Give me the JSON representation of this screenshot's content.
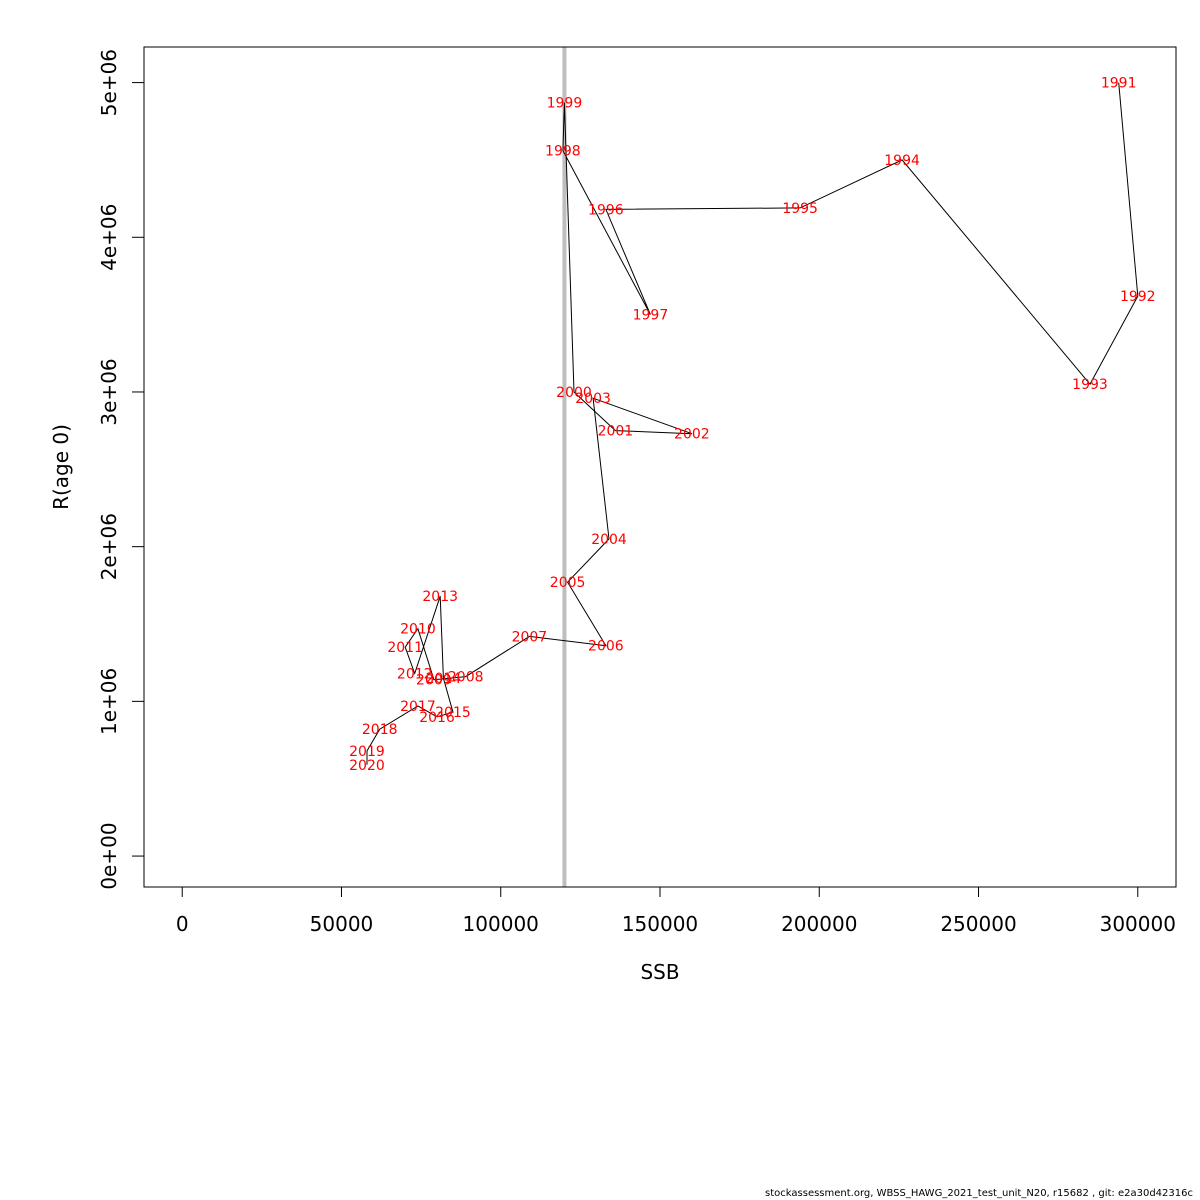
{
  "chart_data": {
    "type": "scatter",
    "connected": true,
    "xlabel": "SSB",
    "ylabel": "R(age 0)",
    "xlim": [
      -12000,
      312000
    ],
    "ylim": [
      -200000,
      5230000
    ],
    "xticks": [
      0,
      50000,
      100000,
      150000,
      200000,
      250000,
      300000
    ],
    "xtick_labels": [
      "0",
      "50000",
      "100000",
      "150000",
      "200000",
      "250000",
      "300000"
    ],
    "yticks": [
      0,
      1000000,
      2000000,
      3000000,
      4000000,
      5000000
    ],
    "ytick_labels": [
      "0e+00",
      "1e+06",
      "2e+06",
      "3e+06",
      "4e+06",
      "5e+06"
    ],
    "reference_line": {
      "axis": "x",
      "value": 120000
    },
    "grid": false,
    "points": [
      {
        "label": "1991",
        "x": 294000,
        "y": 5000000
      },
      {
        "label": "1992",
        "x": 300000,
        "y": 3620000
      },
      {
        "label": "1993",
        "x": 285000,
        "y": 3050000
      },
      {
        "label": "1994",
        "x": 226000,
        "y": 4500000
      },
      {
        "label": "1995",
        "x": 194000,
        "y": 4190000
      },
      {
        "label": "1996",
        "x": 133000,
        "y": 4180000
      },
      {
        "label": "1997",
        "x": 147000,
        "y": 3500000
      },
      {
        "label": "1998",
        "x": 119500,
        "y": 4560000
      },
      {
        "label": "1999",
        "x": 120000,
        "y": 4870000
      },
      {
        "label": "2000",
        "x": 123000,
        "y": 3000000
      },
      {
        "label": "2001",
        "x": 136000,
        "y": 2750000
      },
      {
        "label": "2002",
        "x": 160000,
        "y": 2730000
      },
      {
        "label": "2003",
        "x": 129000,
        "y": 2960000
      },
      {
        "label": "2004",
        "x": 134000,
        "y": 2050000
      },
      {
        "label": "2005",
        "x": 121000,
        "y": 1770000
      },
      {
        "label": "2006",
        "x": 133000,
        "y": 1360000
      },
      {
        "label": "2007",
        "x": 109000,
        "y": 1420000
      },
      {
        "label": "2008",
        "x": 89000,
        "y": 1160000
      },
      {
        "label": "2009",
        "x": 79000,
        "y": 1140000
      },
      {
        "label": "2010",
        "x": 74000,
        "y": 1470000
      },
      {
        "label": "2011",
        "x": 70000,
        "y": 1350000
      },
      {
        "label": "2012",
        "x": 73000,
        "y": 1180000
      },
      {
        "label": "2013",
        "x": 81000,
        "y": 1680000
      },
      {
        "label": "2014",
        "x": 82000,
        "y": 1150000
      },
      {
        "label": "2015",
        "x": 85000,
        "y": 930000
      },
      {
        "label": "2016",
        "x": 80000,
        "y": 900000
      },
      {
        "label": "2017",
        "x": 74000,
        "y": 970000
      },
      {
        "label": "2018",
        "x": 62000,
        "y": 820000
      },
      {
        "label": "2019",
        "x": 58000,
        "y": 680000
      },
      {
        "label": "2020",
        "x": 58000,
        "y": 590000
      }
    ]
  },
  "colors": {
    "point_label": "#ff0000",
    "connector": "#000000",
    "reference_line": "#bebebe",
    "axis": "#000000"
  },
  "footer": {
    "text": "stockassessment.org, WBSS_HAWG_2021_test_unit_N20, r15682 , git: e2a30d42316c"
  }
}
